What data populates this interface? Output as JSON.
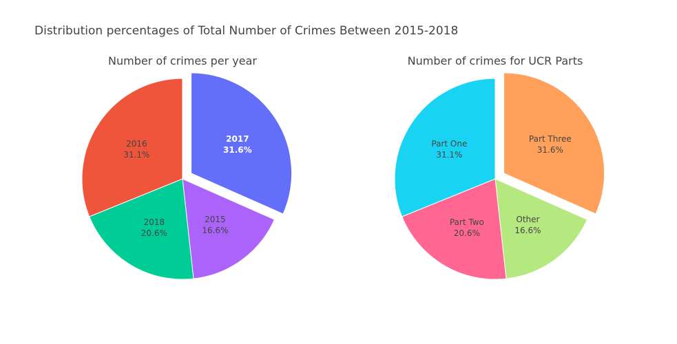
{
  "title": "Distribution percentages of Total Number of Crimes Between 2015-2018",
  "chart_data": [
    {
      "type": "pie",
      "title": "Number of crimes per year",
      "slices": [
        {
          "label": "2017",
          "percent": 31.6,
          "color": "#636efa",
          "pulled": true
        },
        {
          "label": "2015",
          "percent": 16.6,
          "color": "#ab63fa",
          "pulled": false
        },
        {
          "label": "2018",
          "percent": 20.6,
          "color": "#00cc96",
          "pulled": false
        },
        {
          "label": "2016",
          "percent": 31.1,
          "color": "#ef553b",
          "pulled": false
        }
      ]
    },
    {
      "type": "pie",
      "title": "Number of crimes for UCR Parts",
      "slices": [
        {
          "label": "Part Three",
          "percent": 31.6,
          "color": "#ffa15a",
          "pulled": true
        },
        {
          "label": "Other",
          "percent": 16.6,
          "color": "#b6e880",
          "pulled": false
        },
        {
          "label": "Part Two",
          "percent": 20.6,
          "color": "#ff6692",
          "pulled": false
        },
        {
          "label": "Part One",
          "percent": 31.1,
          "color": "#19d3f3",
          "pulled": false
        }
      ]
    }
  ]
}
